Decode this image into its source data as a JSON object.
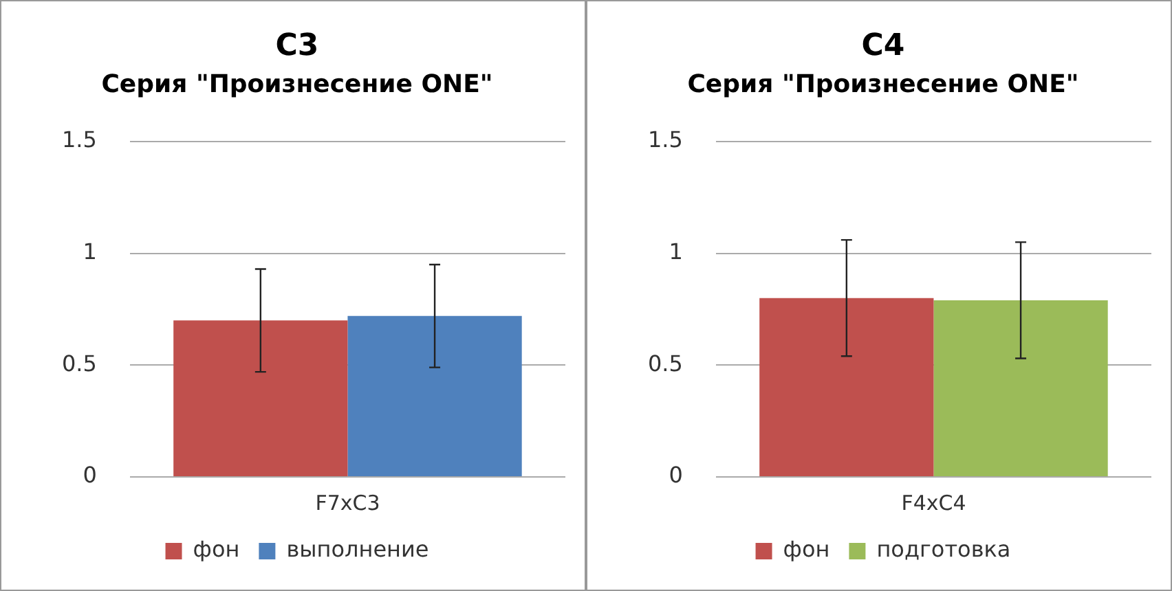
{
  "chart_data": [
    {
      "type": "bar",
      "title": "C3",
      "subtitle": "Серия \"Произнесение ONE\"",
      "categories": [
        "F7xC3"
      ],
      "series": [
        {
          "name": "фон",
          "color": "#c0504d",
          "values": [
            0.7
          ],
          "errors": [
            0.23
          ]
        },
        {
          "name": "выполнение",
          "color": "#4f81bd",
          "values": [
            0.72
          ],
          "errors": [
            0.23
          ]
        }
      ],
      "ylim": [
        0,
        1.5
      ],
      "yticks": [
        0,
        0.5,
        1,
        1.5
      ],
      "grid": "y",
      "legend": "bottom"
    },
    {
      "type": "bar",
      "title": "C4",
      "subtitle": "Серия \"Произнесение ONE\"",
      "categories": [
        "F4xC4"
      ],
      "series": [
        {
          "name": "фон",
          "color": "#c0504d",
          "values": [
            0.8
          ],
          "errors": [
            0.26
          ]
        },
        {
          "name": "подготовка",
          "color": "#9bbb59",
          "values": [
            0.79
          ],
          "errors": [
            0.26
          ]
        }
      ],
      "ylim": [
        0,
        1.5
      ],
      "yticks": [
        0,
        0.5,
        1,
        1.5
      ],
      "grid": "y",
      "legend": "bottom"
    }
  ]
}
